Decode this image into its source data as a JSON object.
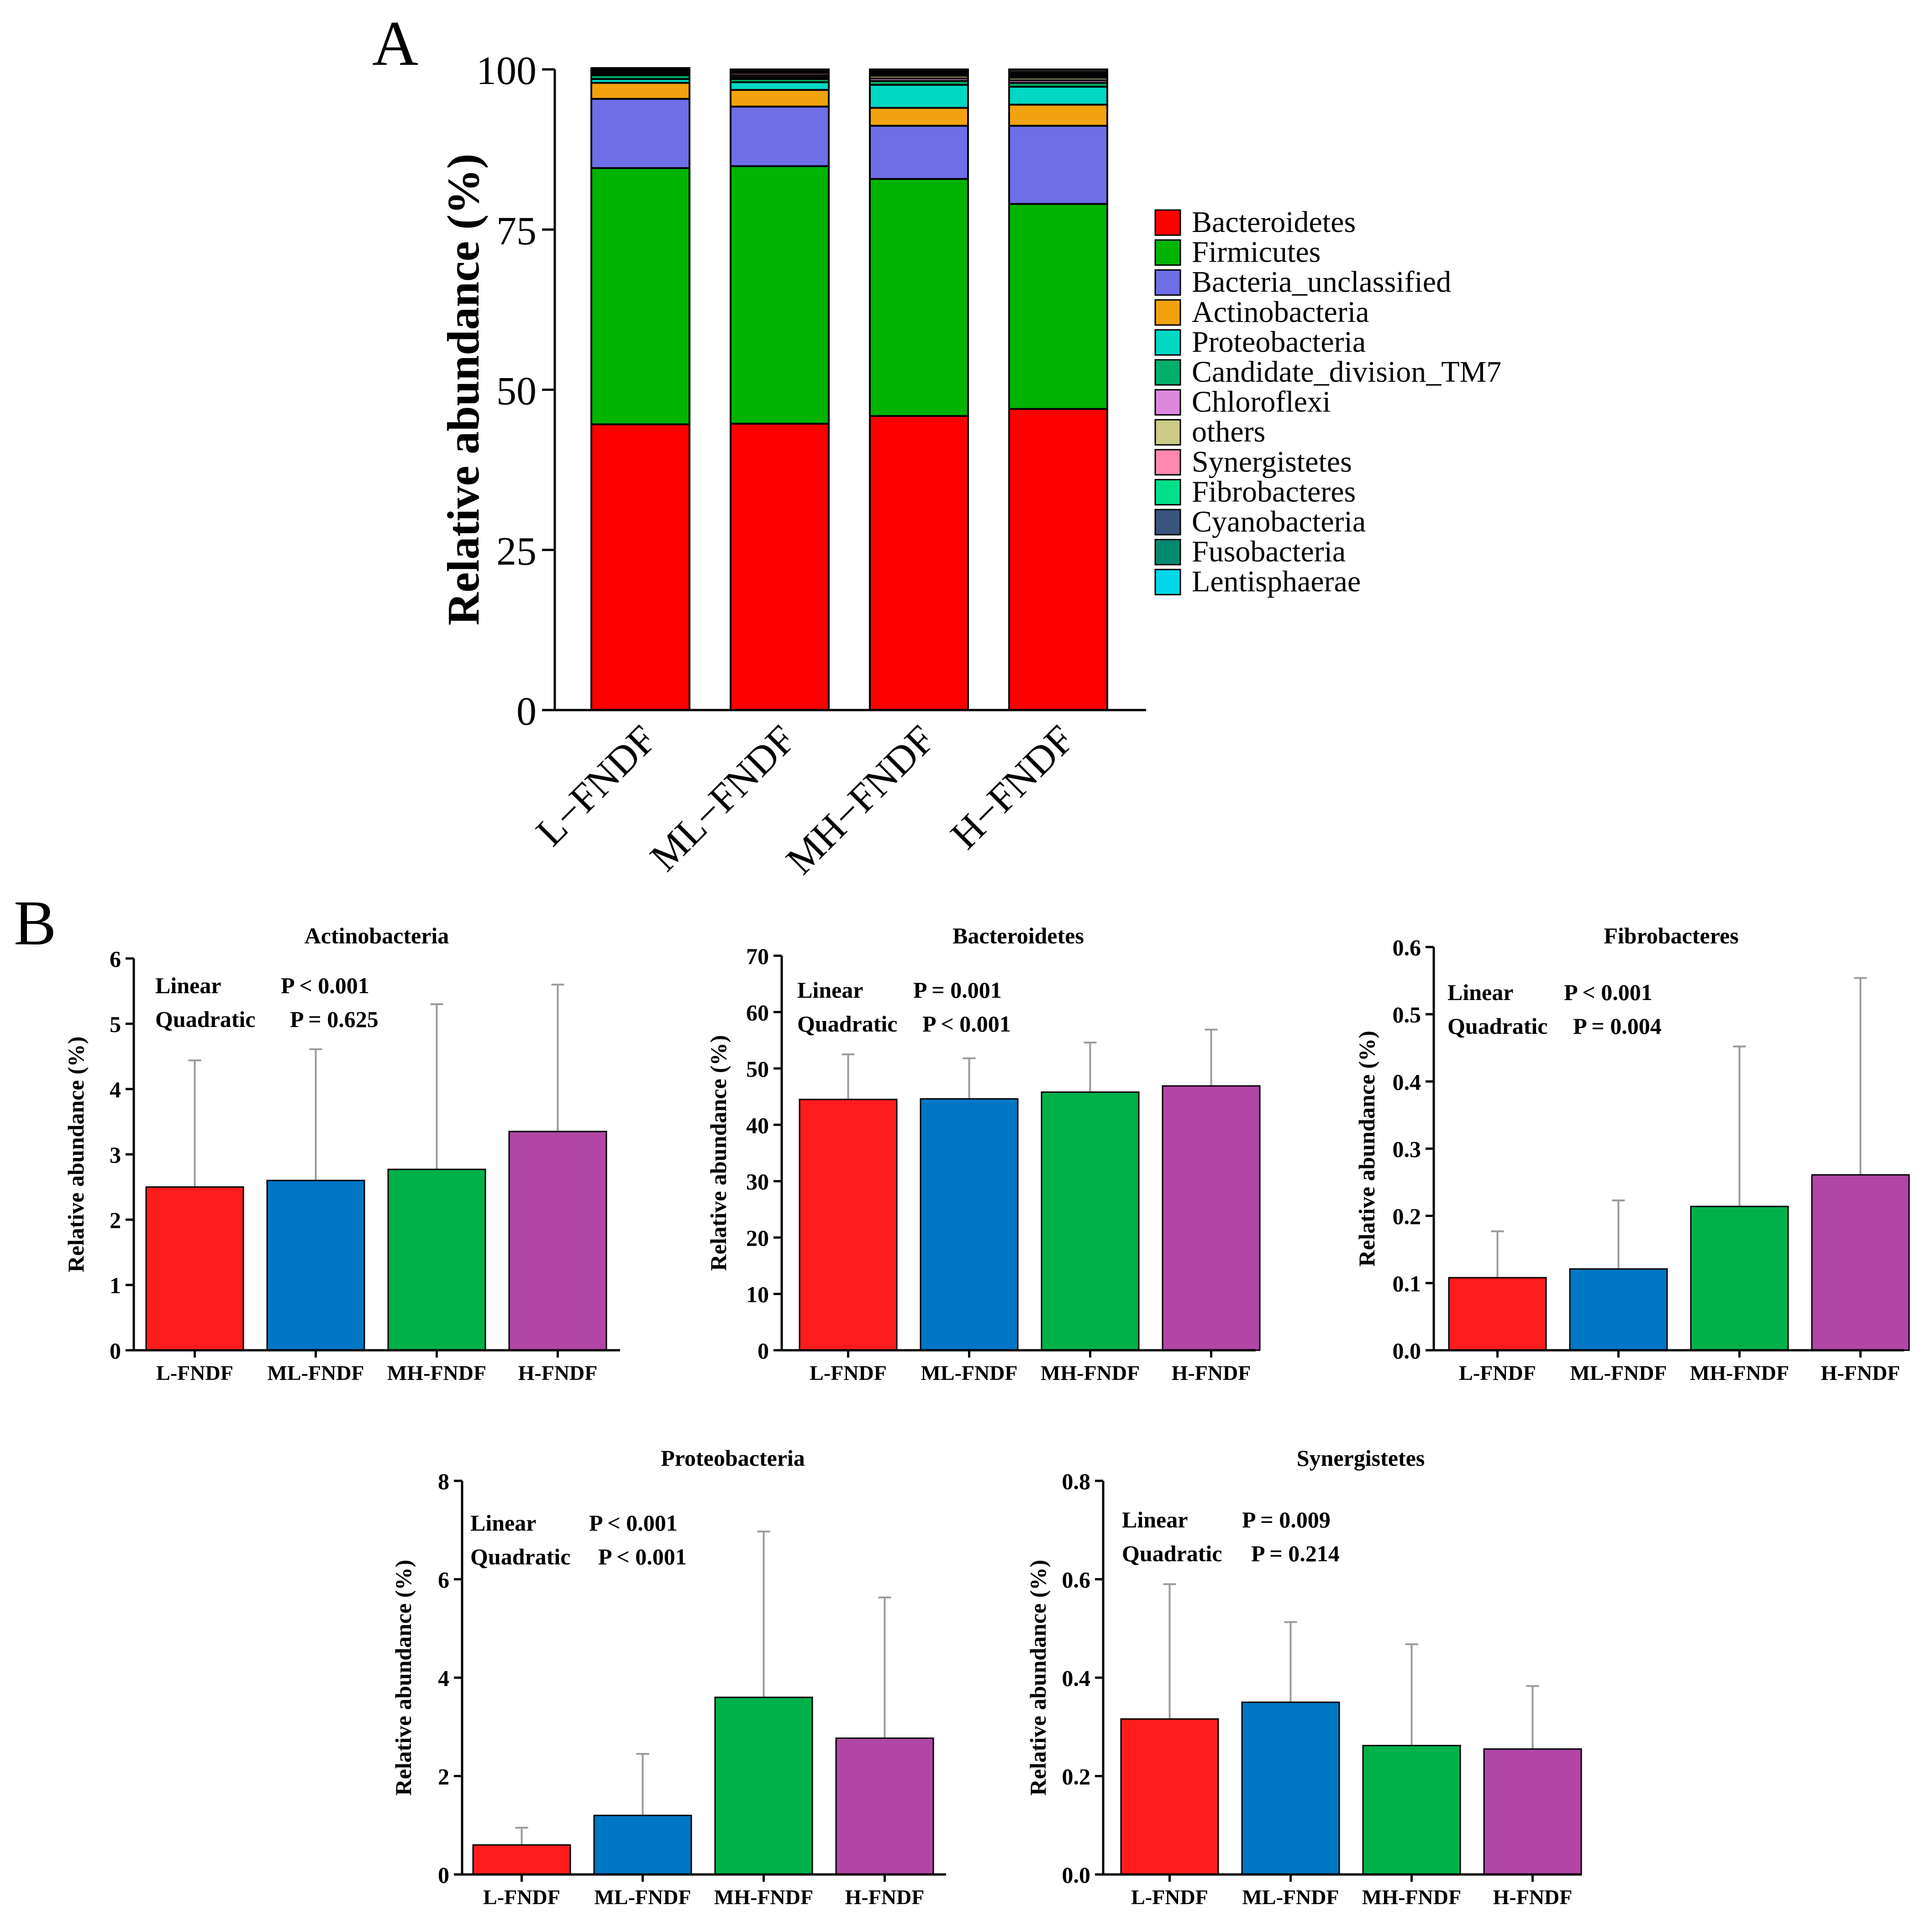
{
  "panel_labels": {
    "a": "A",
    "b": "B"
  },
  "colors": {
    "group": [
      "#fd1c1c",
      "#0077c5",
      "#00b14a",
      "#b146a6"
    ],
    "error_bar": "#9b9b9b",
    "axis": "#000000"
  },
  "chart_data": [
    {
      "type": "bar",
      "stacked": true,
      "id": "A",
      "ylabel": "Relative abundance (%)",
      "ylim": [
        0,
        100
      ],
      "yticks": [
        0,
        25,
        50,
        75,
        100
      ],
      "categories": [
        "L−FNDF",
        "ML−FNDF",
        "MH−FNDF",
        "H−FNDF"
      ],
      "legend_position": "right",
      "series": [
        {
          "name": "Bacteroidetes",
          "color": "#ff0000",
          "values": [
            44.6,
            44.7,
            45.9,
            47.0
          ]
        },
        {
          "name": "Firmicutes",
          "color": "#00b400",
          "values": [
            40.0,
            40.2,
            37.0,
            32.0
          ]
        },
        {
          "name": "Bacteria_unclassified",
          "color": "#6e6ee6",
          "values": [
            10.8,
            9.3,
            8.3,
            12.2
          ]
        },
        {
          "name": "Actinobacteria",
          "color": "#f2a20d",
          "values": [
            2.5,
            2.6,
            2.8,
            3.3
          ]
        },
        {
          "name": "Proteobacteria",
          "color": "#00d8c4",
          "values": [
            0.6,
            1.2,
            3.6,
            2.8
          ]
        },
        {
          "name": "Candidate_division_TM7",
          "color": "#00b06a",
          "values": [
            0.6,
            0.5,
            0.6,
            0.6
          ]
        },
        {
          "name": "Chloroflexi",
          "color": "#dd88dd",
          "values": [
            0.2,
            0.3,
            0.4,
            0.4
          ]
        },
        {
          "name": "others",
          "color": "#cccc88",
          "values": [
            0.2,
            0.3,
            0.4,
            0.4
          ]
        },
        {
          "name": "Synergistetes",
          "color": "#ff88b0",
          "values": [
            0.3,
            0.35,
            0.26,
            0.26
          ]
        },
        {
          "name": "Fibrobacteres",
          "color": "#00e08a",
          "values": [
            0.11,
            0.12,
            0.21,
            0.26
          ]
        },
        {
          "name": "Cyanobacteria",
          "color": "#3a5480",
          "values": [
            0.1,
            0.1,
            0.1,
            0.1
          ]
        },
        {
          "name": "Fusobacteria",
          "color": "#008a70",
          "values": [
            0.1,
            0.1,
            0.1,
            0.1
          ]
        },
        {
          "name": "Lentisphaerae",
          "color": "#00d8e8",
          "values": [
            0.1,
            0.1,
            0.1,
            0.1
          ]
        }
      ]
    },
    {
      "type": "bar",
      "id": "B1",
      "title": "Actinobacteria",
      "ylabel": "Relative abundance (%)",
      "categories": [
        "L-FNDF",
        "ML-FNDF",
        "MH-FNDF",
        "H-FNDF"
      ],
      "values": [
        2.5,
        2.6,
        2.77,
        3.35
      ],
      "errors": [
        1.94,
        2.01,
        2.53,
        2.25
      ],
      "ylim": [
        0,
        6
      ],
      "yticks": [
        "0",
        "1",
        "2",
        "3",
        "4",
        "5",
        "6"
      ],
      "stats": [
        {
          "label": "Linear",
          "p": "P < 0.001"
        },
        {
          "label": "Quadratic",
          "p": "P = 0.625"
        }
      ]
    },
    {
      "type": "bar",
      "id": "B2",
      "title": "Bacteroidetes",
      "ylabel": "Relative abundance (%)",
      "categories": [
        "L-FNDF",
        "ML-FNDF",
        "MH-FNDF",
        "H-FNDF"
      ],
      "values": [
        44.5,
        44.6,
        45.8,
        46.9
      ],
      "errors": [
        8.0,
        7.2,
        8.8,
        10.0
      ],
      "ylim": [
        0,
        70
      ],
      "yticks": [
        "0",
        "10",
        "20",
        "30",
        "40",
        "50",
        "60",
        "70"
      ],
      "stats": [
        {
          "label": "Linear",
          "p": "P = 0.001"
        },
        {
          "label": "Quadratic",
          "p": "P < 0.001"
        }
      ]
    },
    {
      "type": "bar",
      "id": "B3",
      "title": "Fibrobacteres",
      "ylabel": "Relative abundance (%)",
      "categories": [
        "L-FNDF",
        "ML-FNDF",
        "MH-FNDF",
        "H-FNDF"
      ],
      "values": [
        0.108,
        0.121,
        0.214,
        0.261
      ],
      "errors": [
        0.069,
        0.102,
        0.238,
        0.293
      ],
      "ylim": [
        0,
        0.6
      ],
      "yticks": [
        "0.0",
        "0.1",
        "0.2",
        "0.3",
        "0.4",
        "0.5",
        "0.6"
      ],
      "stats": [
        {
          "label": "Linear",
          "p": "P < 0.001"
        },
        {
          "label": "Quadratic",
          "p": "P = 0.004"
        }
      ]
    },
    {
      "type": "bar",
      "id": "B4",
      "title": "Proteobacteria",
      "ylabel": "Relative abundance (%)",
      "categories": [
        "L-FNDF",
        "ML-FNDF",
        "MH-FNDF",
        "H-FNDF"
      ],
      "values": [
        0.6,
        1.2,
        3.6,
        2.77
      ],
      "errors": [
        0.35,
        1.25,
        3.37,
        2.86
      ],
      "ylim": [
        0,
        8
      ],
      "yticks": [
        "0",
        "2",
        "4",
        "6",
        "8"
      ],
      "stats": [
        {
          "label": "Linear",
          "p": "P < 0.001"
        },
        {
          "label": "Quadratic",
          "p": "P < 0.001"
        }
      ]
    },
    {
      "type": "bar",
      "id": "B5",
      "title": "Synergistetes",
      "ylabel": "Relative abundance (%)",
      "categories": [
        "L-FNDF",
        "ML-FNDF",
        "MH-FNDF",
        "H-FNDF"
      ],
      "values": [
        0.316,
        0.35,
        0.262,
        0.255
      ],
      "errors": [
        0.274,
        0.163,
        0.206,
        0.128
      ],
      "ylim": [
        0,
        0.8
      ],
      "yticks": [
        "0.0",
        "0.2",
        "0.4",
        "0.6",
        "0.8"
      ],
      "stats": [
        {
          "label": "Linear",
          "p": "P = 0.009"
        },
        {
          "label": "Quadratic",
          "p": "P = 0.214"
        }
      ]
    }
  ]
}
